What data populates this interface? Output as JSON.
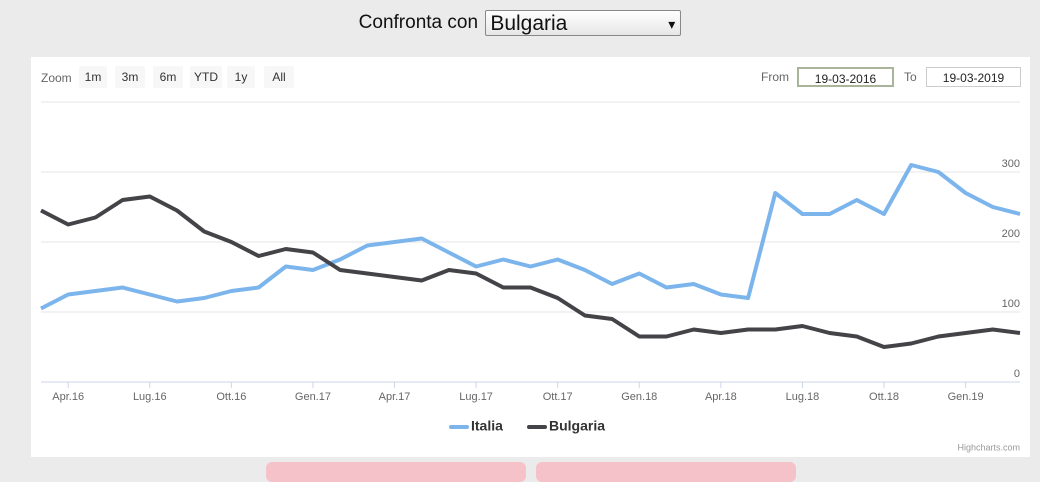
{
  "header": {
    "label": "Confronta con",
    "selected": "Bulgaria"
  },
  "range_selector": {
    "zoom_label": "Zoom",
    "buttons": [
      "1m",
      "3m",
      "6m",
      "YTD",
      "1y",
      "All"
    ],
    "from_label": "From",
    "from": "19-03-2016",
    "to_label": "To",
    "to": "19-03-2019"
  },
  "chart_data": {
    "type": "line",
    "credits": "Highcharts.com",
    "x": [
      "2016-03",
      "2016-04",
      "2016-05",
      "2016-06",
      "2016-07",
      "2016-08",
      "2016-09",
      "2016-10",
      "2016-11",
      "2016-12",
      "2017-01",
      "2017-02",
      "2017-03",
      "2017-04",
      "2017-05",
      "2017-06",
      "2017-07",
      "2017-08",
      "2017-09",
      "2017-10",
      "2017-11",
      "2017-12",
      "2018-01",
      "2018-02",
      "2018-03",
      "2018-04",
      "2018-05",
      "2018-06",
      "2018-07",
      "2018-08",
      "2018-09",
      "2018-10",
      "2018-11",
      "2018-12",
      "2019-01",
      "2019-02",
      "2019-03"
    ],
    "series": [
      {
        "name": "Italia",
        "color": "#7cb5ec",
        "values": [
          105,
          125,
          130,
          135,
          125,
          115,
          120,
          130,
          135,
          165,
          160,
          175,
          195,
          200,
          205,
          185,
          165,
          175,
          165,
          175,
          160,
          140,
          155,
          135,
          140,
          125,
          120,
          270,
          240,
          240,
          260,
          240,
          310,
          300,
          270,
          250,
          240
        ]
      },
      {
        "name": "Bulgaria",
        "color": "#434348",
        "values": [
          245,
          225,
          235,
          260,
          265,
          245,
          215,
          200,
          180,
          190,
          185,
          160,
          155,
          150,
          145,
          160,
          155,
          135,
          135,
          120,
          95,
          90,
          65,
          65,
          75,
          70,
          75,
          75,
          80,
          70,
          65,
          50,
          55,
          65,
          70,
          75,
          70
        ]
      }
    ],
    "xlim": [
      "2016-03",
      "2019-03"
    ],
    "xticks": [
      {
        "value": "2016-04",
        "label": "Apr.16"
      },
      {
        "value": "2016-07",
        "label": "Lug.16"
      },
      {
        "value": "2016-10",
        "label": "Ott.16"
      },
      {
        "value": "2017-01",
        "label": "Gen.17"
      },
      {
        "value": "2017-04",
        "label": "Apr.17"
      },
      {
        "value": "2017-07",
        "label": "Lug.17"
      },
      {
        "value": "2017-10",
        "label": "Ott.17"
      },
      {
        "value": "2018-01",
        "label": "Gen.18"
      },
      {
        "value": "2018-04",
        "label": "Apr.18"
      },
      {
        "value": "2018-07",
        "label": "Lug.18"
      },
      {
        "value": "2018-10",
        "label": "Ott.18"
      },
      {
        "value": "2019-01",
        "label": "Gen.19"
      }
    ],
    "ylim": [
      0,
      400
    ],
    "yticks": [
      0,
      100,
      200,
      300
    ],
    "grid": true
  }
}
